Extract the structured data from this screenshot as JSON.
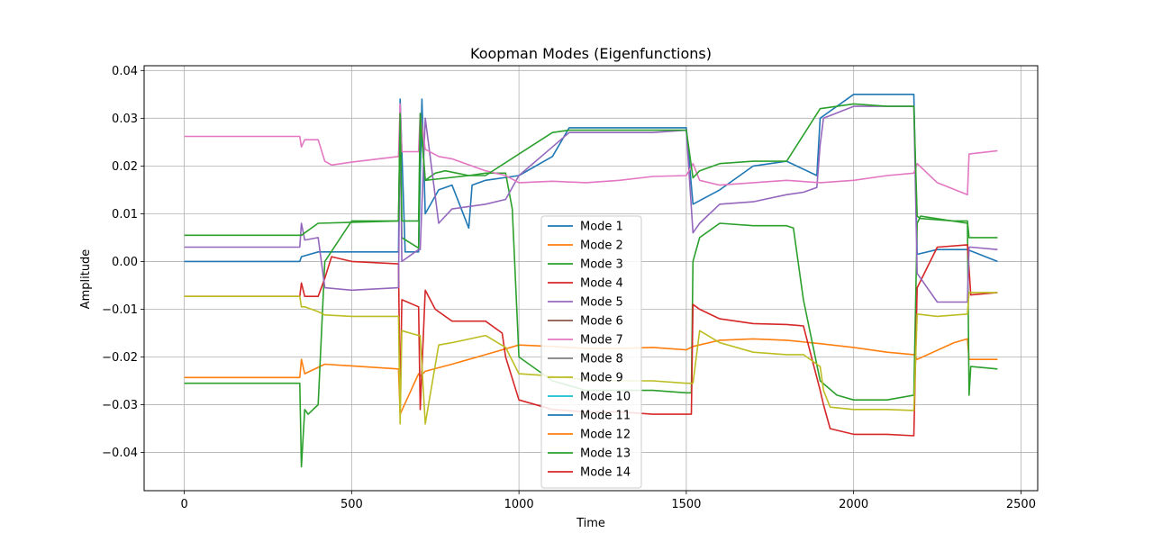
{
  "chart_data": {
    "type": "line",
    "title": "Koopman Modes (Eigenfunctions)",
    "xlabel": "Time",
    "ylabel": "Amplitude",
    "xlim": [
      -120,
      2550
    ],
    "ylim": [
      -0.048,
      0.041
    ],
    "xticks": [
      0,
      500,
      1000,
      1500,
      2000,
      2500
    ],
    "xtick_labels": [
      "0",
      "500",
      "1000",
      "1500",
      "2000",
      "2500"
    ],
    "yticks": [
      -0.04,
      -0.03,
      -0.02,
      -0.01,
      0.0,
      0.01,
      0.02,
      0.03,
      0.04
    ],
    "ytick_labels": [
      "−0.04",
      "−0.03",
      "−0.02",
      "−0.01",
      "0.00",
      "0.01",
      "0.02",
      "0.03",
      "0.04"
    ],
    "grid": true,
    "legend_position": "center",
    "colors": {
      "c0": "#1f77b4",
      "c1": "#ff7f0e",
      "c2": "#2ca02c",
      "c3": "#d62728",
      "c4": "#9467bd",
      "c5": "#8c564b",
      "c6": "#e377c2",
      "c7": "#7f7f7f",
      "c8": "#bcbd22",
      "c9": "#17becf"
    },
    "series": [
      {
        "name": "Mode 1",
        "color": "#1f77b4",
        "x": [
          0,
          345,
          350,
          400,
          640,
          645,
          660,
          700,
          710,
          720,
          760,
          800,
          850,
          860,
          900,
          1000,
          1100,
          1150,
          1250,
          1500,
          1520,
          1600,
          1700,
          1800,
          1890,
          1900,
          2000,
          2180,
          2190,
          2250,
          2340,
          2430
        ],
        "y": [
          0.0,
          0.0,
          0.001,
          0.002,
          0.002,
          0.034,
          0.002,
          0.002,
          0.034,
          0.01,
          0.015,
          0.016,
          0.007,
          0.016,
          0.017,
          0.018,
          0.022,
          0.028,
          0.028,
          0.028,
          0.012,
          0.015,
          0.02,
          0.021,
          0.018,
          0.03,
          0.035,
          0.035,
          0.0015,
          0.0025,
          0.0025,
          0.0
        ]
      },
      {
        "name": "Mode 2",
        "color": "#ff7f0e",
        "x": [
          0,
          345,
          350,
          360,
          420,
          640,
          645,
          700,
          705,
          720,
          800,
          900,
          1000,
          1100,
          1200,
          1300,
          1400,
          1500,
          1520,
          1600,
          1700,
          1800,
          1900,
          2000,
          2100,
          2180,
          2190,
          2300,
          2340,
          2345,
          2430
        ],
        "y": [
          -0.0243,
          -0.0243,
          -0.0205,
          -0.0235,
          -0.0215,
          -0.0225,
          -0.032,
          -0.0235,
          -0.024,
          -0.023,
          -0.0215,
          -0.0195,
          -0.0175,
          -0.0178,
          -0.0182,
          -0.0182,
          -0.018,
          -0.0185,
          -0.0178,
          -0.0165,
          -0.0162,
          -0.0165,
          -0.0172,
          -0.018,
          -0.019,
          -0.0195,
          -0.0205,
          -0.017,
          -0.0162,
          -0.0205,
          -0.0205
        ]
      },
      {
        "name": "Mode 3",
        "color": "#2ca02c",
        "x": [
          0,
          345,
          350,
          360,
          370,
          400,
          420,
          500,
          640,
          645,
          650,
          700,
          705,
          720,
          750,
          780,
          850,
          900,
          960,
          980,
          1000,
          1100,
          1200,
          1300,
          1400,
          1500,
          1515,
          1520,
          1540,
          1600,
          1700,
          1800,
          1820,
          1850,
          1900,
          1950,
          2000,
          2100,
          2180,
          2190,
          2200,
          2340,
          2345,
          2350,
          2430
        ],
        "y": [
          -0.0255,
          -0.0255,
          -0.043,
          -0.031,
          -0.032,
          -0.03,
          0.0,
          0.0085,
          0.0085,
          0.03,
          0.005,
          0.0028,
          0.03,
          0.017,
          0.0185,
          0.019,
          0.018,
          0.0185,
          0.0185,
          0.011,
          -0.02,
          -0.025,
          -0.027,
          -0.027,
          -0.027,
          -0.0275,
          -0.0275,
          0.0,
          0.005,
          0.008,
          0.0075,
          0.0075,
          0.007,
          -0.008,
          -0.025,
          -0.028,
          -0.029,
          -0.029,
          -0.028,
          0.008,
          0.0095,
          0.008,
          -0.028,
          -0.022,
          -0.0225
        ]
      },
      {
        "name": "Mode 4",
        "color": "#d62728",
        "x": [
          0,
          345,
          350,
          360,
          400,
          420,
          440,
          500,
          640,
          645,
          650,
          700,
          705,
          720,
          750,
          800,
          900,
          950,
          960,
          1000,
          1100,
          1200,
          1300,
          1400,
          1500,
          1515,
          1520,
          1540,
          1600,
          1700,
          1800,
          1850,
          1900,
          1910,
          1930,
          2000,
          2100,
          2180,
          2190,
          2250,
          2340,
          2345,
          2350,
          2430
        ],
        "y": [
          -0.0073,
          -0.0073,
          -0.0045,
          -0.0073,
          -0.0073,
          -0.0035,
          0.001,
          0.0,
          -0.0005,
          -0.03,
          -0.008,
          -0.0095,
          -0.031,
          -0.006,
          -0.01,
          -0.0125,
          -0.0125,
          -0.015,
          -0.02,
          -0.029,
          -0.031,
          -0.0315,
          -0.0315,
          -0.032,
          -0.032,
          -0.032,
          -0.009,
          -0.01,
          -0.012,
          -0.013,
          -0.0132,
          -0.0135,
          -0.027,
          -0.03,
          -0.035,
          -0.0362,
          -0.0362,
          -0.0365,
          -0.0055,
          0.003,
          0.0035,
          -0.0015,
          -0.007,
          -0.0065
        ]
      },
      {
        "name": "Mode 5",
        "color": "#9467bd",
        "x": [
          0,
          345,
          350,
          360,
          400,
          420,
          500,
          640,
          645,
          650,
          700,
          705,
          720,
          760,
          800,
          850,
          900,
          960,
          1000,
          1100,
          1150,
          1250,
          1400,
          1500,
          1520,
          1540,
          1600,
          1700,
          1800,
          1850,
          1890,
          1900,
          1910,
          2000,
          2100,
          2180,
          2190,
          2250,
          2340,
          2345,
          2350,
          2430
        ],
        "y": [
          0.003,
          0.003,
          0.008,
          0.0045,
          0.005,
          -0.0055,
          -0.006,
          -0.0055,
          0.031,
          0.0,
          0.0025,
          0.0025,
          0.03,
          0.008,
          0.011,
          0.0115,
          0.012,
          0.013,
          0.018,
          0.024,
          0.027,
          0.027,
          0.027,
          0.0275,
          0.006,
          0.008,
          0.012,
          0.0125,
          0.014,
          0.0145,
          0.0155,
          0.0245,
          0.03,
          0.0325,
          0.0325,
          0.0325,
          -0.0025,
          -0.0085,
          -0.0085,
          0.003,
          0.003,
          0.0025
        ]
      },
      {
        "name": "Mode 6",
        "color": "#8c564b",
        "x": [],
        "y": []
      },
      {
        "name": "Mode 7",
        "color": "#e377c2",
        "x": [
          0,
          345,
          350,
          360,
          400,
          420,
          440,
          500,
          640,
          645,
          650,
          700,
          705,
          720,
          760,
          800,
          900,
          960,
          1000,
          1100,
          1200,
          1300,
          1400,
          1500,
          1520,
          1540,
          1600,
          1700,
          1800,
          1900,
          2000,
          2100,
          2180,
          2190,
          2250,
          2340,
          2345,
          2430
        ],
        "y": [
          0.0262,
          0.0262,
          0.024,
          0.0255,
          0.0255,
          0.021,
          0.0202,
          0.0208,
          0.022,
          0.033,
          0.023,
          0.023,
          0.031,
          0.0235,
          0.022,
          0.0215,
          0.019,
          0.018,
          0.0165,
          0.0168,
          0.0165,
          0.017,
          0.0178,
          0.018,
          0.0205,
          0.017,
          0.016,
          0.0165,
          0.017,
          0.0165,
          0.017,
          0.018,
          0.0185,
          0.0205,
          0.0165,
          0.014,
          0.0225,
          0.0232
        ]
      },
      {
        "name": "Mode 8",
        "color": "#7f7f7f",
        "x": [],
        "y": []
      },
      {
        "name": "Mode 9",
        "color": "#bcbd22",
        "x": [
          0,
          345,
          350,
          360,
          400,
          420,
          500,
          640,
          645,
          650,
          700,
          705,
          720,
          760,
          800,
          900,
          960,
          1000,
          1100,
          1200,
          1300,
          1400,
          1500,
          1520,
          1540,
          1600,
          1700,
          1800,
          1850,
          1900,
          1910,
          1930,
          2000,
          2100,
          2180,
          2190,
          2250,
          2340,
          2345,
          2350,
          2430
        ],
        "y": [
          -0.0073,
          -0.0073,
          -0.0095,
          -0.0095,
          -0.0105,
          -0.0112,
          -0.0115,
          -0.0115,
          -0.034,
          -0.0145,
          -0.0155,
          -0.0155,
          -0.034,
          -0.0175,
          -0.017,
          -0.0155,
          -0.018,
          -0.0235,
          -0.024,
          -0.0248,
          -0.025,
          -0.025,
          -0.0255,
          -0.0255,
          -0.0145,
          -0.017,
          -0.019,
          -0.0195,
          -0.0195,
          -0.022,
          -0.027,
          -0.0305,
          -0.031,
          -0.031,
          -0.0312,
          -0.011,
          -0.0115,
          -0.011,
          -0.0065,
          -0.0065,
          -0.0065
        ]
      },
      {
        "name": "Mode 10",
        "color": "#17becf",
        "x": [],
        "y": []
      },
      {
        "name": "Mode 11",
        "color": "#1f77b4",
        "x": [],
        "y": []
      },
      {
        "name": "Mode 12",
        "color": "#ff7f0e",
        "x": [],
        "y": []
      },
      {
        "name": "Mode 13",
        "color": "#2ca02c",
        "x": [
          0,
          345,
          350,
          400,
          640,
          645,
          650,
          700,
          705,
          720,
          850,
          900,
          1000,
          1100,
          1150,
          1250,
          1500,
          1520,
          1540,
          1600,
          1700,
          1800,
          1900,
          2000,
          2100,
          2180,
          2190,
          2200,
          2300,
          2340,
          2345,
          2430
        ],
        "y": [
          0.0055,
          0.0055,
          0.0055,
          0.008,
          0.0085,
          0.031,
          0.0085,
          0.0085,
          0.031,
          0.017,
          0.018,
          0.018,
          0.0225,
          0.027,
          0.0275,
          0.0275,
          0.0275,
          0.0175,
          0.019,
          0.0205,
          0.021,
          0.021,
          0.032,
          0.033,
          0.0325,
          0.0325,
          0.0095,
          0.009,
          0.0085,
          0.0085,
          0.005,
          0.005
        ]
      },
      {
        "name": "Mode 14",
        "color": "#d62728",
        "x": [],
        "y": []
      }
    ]
  }
}
